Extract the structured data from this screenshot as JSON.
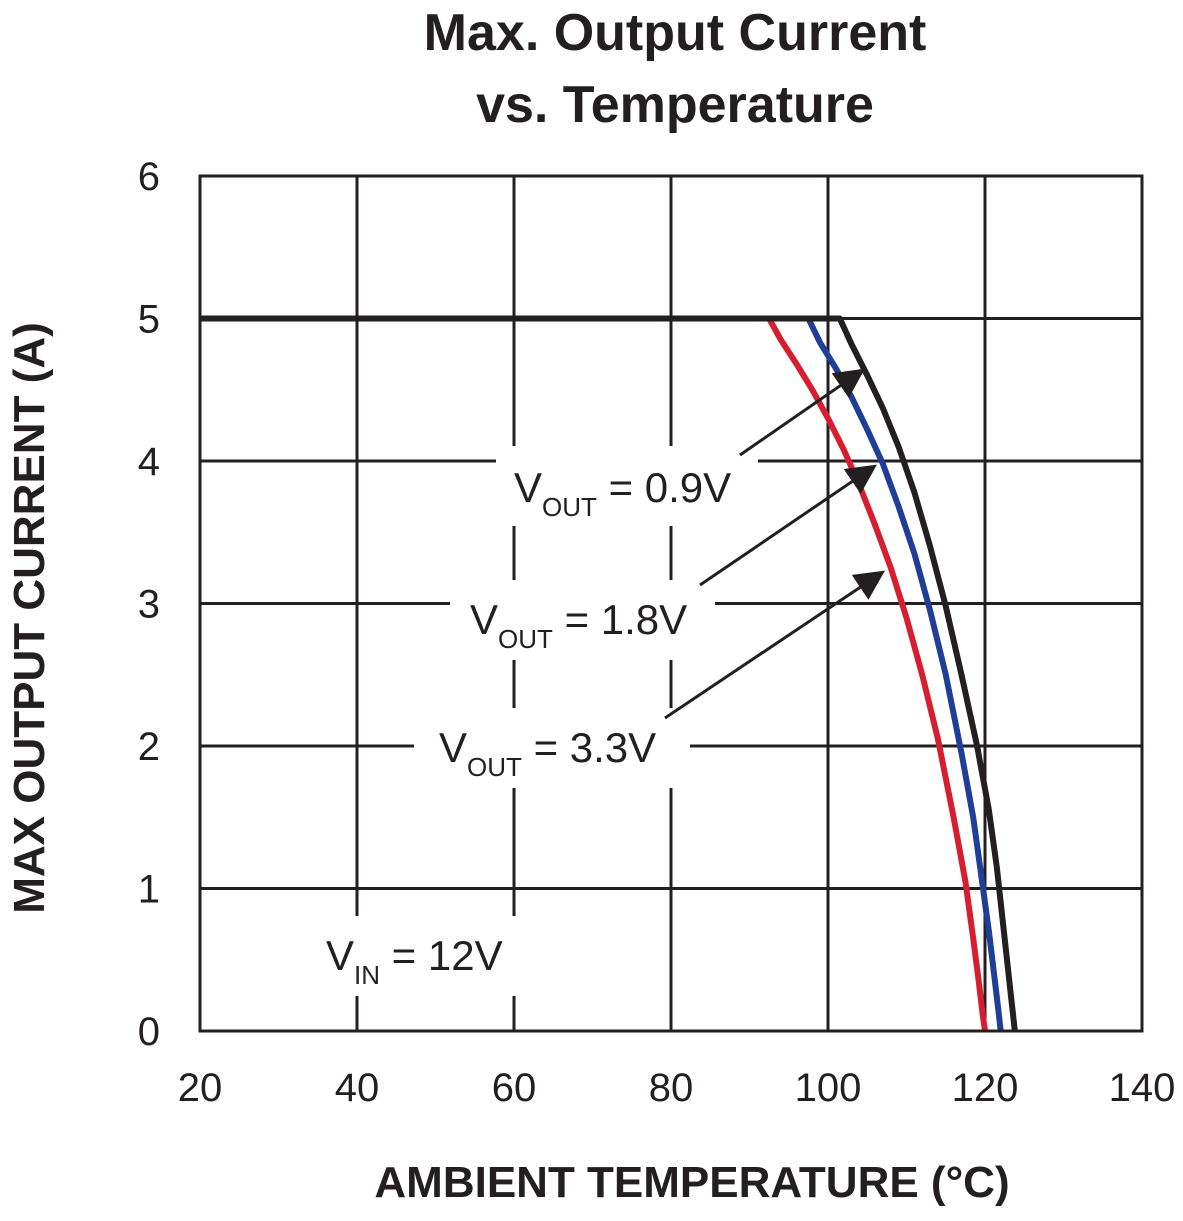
{
  "chart_data": {
    "type": "line",
    "title_lines": [
      "Max. Output Current",
      "vs. Temperature"
    ],
    "xlabel": "AMBIENT TEMPERATURE (°C)",
    "ylabel": "MAX OUTPUT CURRENT (A)",
    "xlim": [
      20,
      140
    ],
    "ylim": [
      0,
      6
    ],
    "xticks": [
      20,
      40,
      60,
      80,
      100,
      120,
      140
    ],
    "yticks": [
      0,
      1,
      2,
      3,
      4,
      5,
      6
    ],
    "grid": true,
    "series": [
      {
        "color": "#231f20",
        "label_main": "V",
        "label_sub": "OUT",
        "label_value": " = 0.9V",
        "x": [
          20,
          101.5,
          103,
          105,
          107,
          109,
          111,
          113,
          115,
          117,
          119,
          120.5,
          121.5,
          122.2,
          122.8,
          123.3,
          123.6,
          123.8
        ],
        "y": [
          5,
          5,
          4.82,
          4.6,
          4.37,
          4.1,
          3.78,
          3.4,
          2.98,
          2.5,
          2.0,
          1.55,
          1.15,
          0.8,
          0.5,
          0.25,
          0.1,
          0
        ]
      },
      {
        "color": "#1f3e97",
        "label_main": "V",
        "label_sub": "OUT",
        "label_value": " = 1.8V",
        "x": [
          20,
          97.5,
          99,
          101,
          103,
          105,
          107,
          109,
          111,
          113,
          115,
          117,
          118.5,
          119.5,
          120.5,
          121.2,
          121.7,
          122.0
        ],
        "y": [
          5,
          5,
          4.83,
          4.65,
          4.45,
          4.22,
          3.98,
          3.68,
          3.35,
          2.95,
          2.5,
          1.95,
          1.5,
          1.1,
          0.7,
          0.38,
          0.15,
          0
        ]
      },
      {
        "color": "#d71e30",
        "label_main": "V",
        "label_sub": "OUT",
        "label_value": " = 3.3V",
        "x": [
          20,
          92.5,
          94,
          96,
          98,
          100,
          102,
          104,
          106,
          108,
          110,
          112,
          114,
          116,
          117.5,
          118.5,
          119.2,
          119.7,
          120.0
        ],
        "y": [
          5,
          5,
          4.85,
          4.68,
          4.5,
          4.3,
          4.08,
          3.83,
          3.55,
          3.25,
          2.9,
          2.5,
          2.05,
          1.5,
          1.05,
          0.65,
          0.35,
          0.12,
          0
        ]
      }
    ],
    "annotations": [
      {
        "main": "V",
        "sub": "IN",
        "value": " = 12V"
      }
    ]
  }
}
